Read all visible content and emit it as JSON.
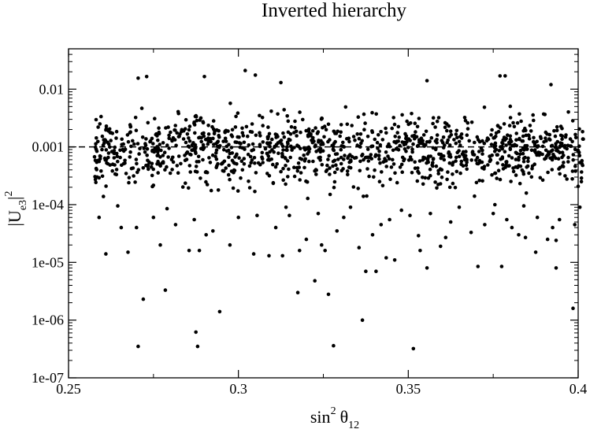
{
  "chart_data": {
    "type": "scatter",
    "title": "Inverted hierarchy",
    "xlabel_parts": {
      "base": "sin",
      "sup": "2",
      "theta": "θ",
      "sub": "12"
    },
    "ylabel_parts": {
      "base": "|U",
      "sub": "e3",
      "bar": "|",
      "sup": "2"
    },
    "xlim": [
      0.25,
      0.4
    ],
    "ylim": [
      1e-07,
      0.05
    ],
    "yscale": "log",
    "x_ticks": [
      {
        "value": 0.25,
        "label": "0.25"
      },
      {
        "value": 0.3,
        "label": "0.3"
      },
      {
        "value": 0.35,
        "label": "0.35"
      },
      {
        "value": 0.4,
        "label": "0.4"
      }
    ],
    "y_ticks": [
      {
        "value": 1e-07,
        "label": "1e-07"
      },
      {
        "value": 1e-06,
        "label": "1e-06"
      },
      {
        "value": 1e-05,
        "label": "1e-05"
      },
      {
        "value": 0.0001,
        "label": "1e-04"
      },
      {
        "value": 0.001,
        "label": "0.001"
      },
      {
        "value": 0.01,
        "label": "0.01"
      }
    ],
    "reference_line": {
      "y": 0.001,
      "style": "dashed"
    },
    "grid": false,
    "points": [
      [
        0.2705,
        3.5e-07
      ],
      [
        0.2875,
        6.2e-07
      ],
      [
        0.288,
        3.5e-07
      ],
      [
        0.328,
        3.6e-07
      ],
      [
        0.3515,
        3.2e-07
      ],
      [
        0.272,
        2.3e-06
      ],
      [
        0.2785,
        3.3e-06
      ],
      [
        0.2945,
        1.4e-06
      ],
      [
        0.3365,
        1e-06
      ],
      [
        0.3985,
        1.6e-06
      ],
      [
        0.3175,
        3e-06
      ],
      [
        0.3225,
        4.8e-06
      ],
      [
        0.3265,
        2.8e-06
      ],
      [
        0.3935,
        8e-06
      ],
      [
        0.3555,
        8e-06
      ],
      [
        0.3595,
        1.9e-05
      ],
      [
        0.3705,
        8.5e-06
      ],
      [
        0.3775,
        8.5e-06
      ],
      [
        0.3685,
        3.3e-05
      ],
      [
        0.261,
        1.4e-05
      ],
      [
        0.2675,
        1.5e-05
      ],
      [
        0.277,
        2e-05
      ],
      [
        0.2855,
        1.6e-05
      ],
      [
        0.2885,
        1.6e-05
      ],
      [
        0.2975,
        2e-05
      ],
      [
        0.3045,
        1.4e-05
      ],
      [
        0.309,
        1.3e-05
      ],
      [
        0.313,
        1.3e-05
      ],
      [
        0.318,
        1.6e-05
      ],
      [
        0.3245,
        2e-05
      ],
      [
        0.3255,
        1.6e-05
      ],
      [
        0.3355,
        1.8e-05
      ],
      [
        0.3375,
        7e-06
      ],
      [
        0.3405,
        7e-06
      ],
      [
        0.3435,
        1.2e-05
      ],
      [
        0.346,
        1.1e-05
      ],
      [
        0.353,
        2.9e-05
      ],
      [
        0.3535,
        1.6e-05
      ],
      [
        0.361,
        2.7e-05
      ],
      [
        0.3825,
        3e-05
      ],
      [
        0.3845,
        2.7e-05
      ],
      [
        0.391,
        2.5e-05
      ],
      [
        0.3935,
        2.4e-05
      ],
      [
        0.3875,
        1.5e-05
      ],
      [
        0.259,
        6e-05
      ],
      [
        0.2645,
        9.5e-05
      ],
      [
        0.2655,
        4e-05
      ],
      [
        0.27,
        4e-05
      ],
      [
        0.275,
        6e-05
      ],
      [
        0.279,
        8.5e-05
      ],
      [
        0.2815,
        4.5e-05
      ],
      [
        0.287,
        5.5e-05
      ],
      [
        0.2905,
        3e-05
      ],
      [
        0.2925,
        3.5e-05
      ],
      [
        0.3,
        6e-05
      ],
      [
        0.3055,
        6.5e-05
      ],
      [
        0.311,
        4e-05
      ],
      [
        0.314,
        9e-05
      ],
      [
        0.315,
        6.5e-05
      ],
      [
        0.32,
        2.5e-05
      ],
      [
        0.3235,
        7e-05
      ],
      [
        0.329,
        3.5e-05
      ],
      [
        0.331,
        6e-05
      ],
      [
        0.333,
        9e-05
      ],
      [
        0.3395,
        3e-05
      ],
      [
        0.342,
        4.5e-05
      ],
      [
        0.3445,
        5.5e-05
      ],
      [
        0.348,
        8e-05
      ],
      [
        0.3505,
        6.5e-05
      ],
      [
        0.3565,
        7e-05
      ],
      [
        0.3625,
        5e-05
      ],
      [
        0.365,
        9e-05
      ],
      [
        0.3725,
        4.5e-05
      ],
      [
        0.375,
        7e-05
      ],
      [
        0.379,
        5.5e-05
      ],
      [
        0.3805,
        4e-05
      ],
      [
        0.384,
        9.5e-05
      ],
      [
        0.388,
        6e-05
      ],
      [
        0.3925,
        4e-05
      ],
      [
        0.3945,
        5.5e-05
      ],
      [
        0.399,
        4.5e-05
      ],
      [
        0.4005,
        9e-05
      ],
      [
        0.3695,
        0.00014
      ],
      [
        0.3755,
        0.0001
      ],
      [
        0.327,
        0.00015
      ],
      [
        0.2705,
        0.0155
      ],
      [
        0.273,
        0.0165
      ],
      [
        0.29,
        0.0165
      ],
      [
        0.302,
        0.021
      ],
      [
        0.305,
        0.0175
      ],
      [
        0.3125,
        0.013
      ],
      [
        0.3555,
        0.014
      ],
      [
        0.377,
        0.017
      ],
      [
        0.3785,
        0.017
      ],
      [
        0.392,
        0.012
      ]
    ]
  }
}
